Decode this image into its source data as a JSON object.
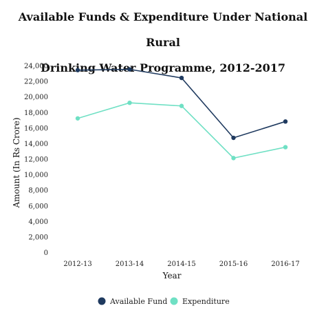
{
  "header": {
    "title_line1": "Available Funds & Expenditure Under National Rural",
    "title_line2": "Drinking Water Programme, 2012-2017"
  },
  "chart_data": {
    "type": "line",
    "title": "Available Funds & Expenditure Under National Rural Drinking Water Programme, 2012-2017",
    "xlabel": "Year",
    "ylabel": "Amount (In Rs Crore)",
    "categories": [
      "2012-13",
      "2013-14",
      "2014-15",
      "2015-16",
      "2016-17"
    ],
    "ylim": [
      0,
      24000
    ],
    "yticks": [
      "0",
      "2,000",
      "4,000",
      "6,000",
      "8,000",
      "10,000",
      "12,000",
      "14,000",
      "16,000",
      "18,000",
      "20,000",
      "22,000",
      "24,000"
    ],
    "grid": false,
    "legend_position": "bottom",
    "series": [
      {
        "name": "Available Fund",
        "color": "#1f3a5f",
        "values": [
          23400,
          23500,
          22400,
          14700,
          16800
        ]
      },
      {
        "name": "Expenditure",
        "color": "#6fe0c4",
        "values": [
          17200,
          19200,
          18800,
          12100,
          13500
        ]
      }
    ]
  }
}
